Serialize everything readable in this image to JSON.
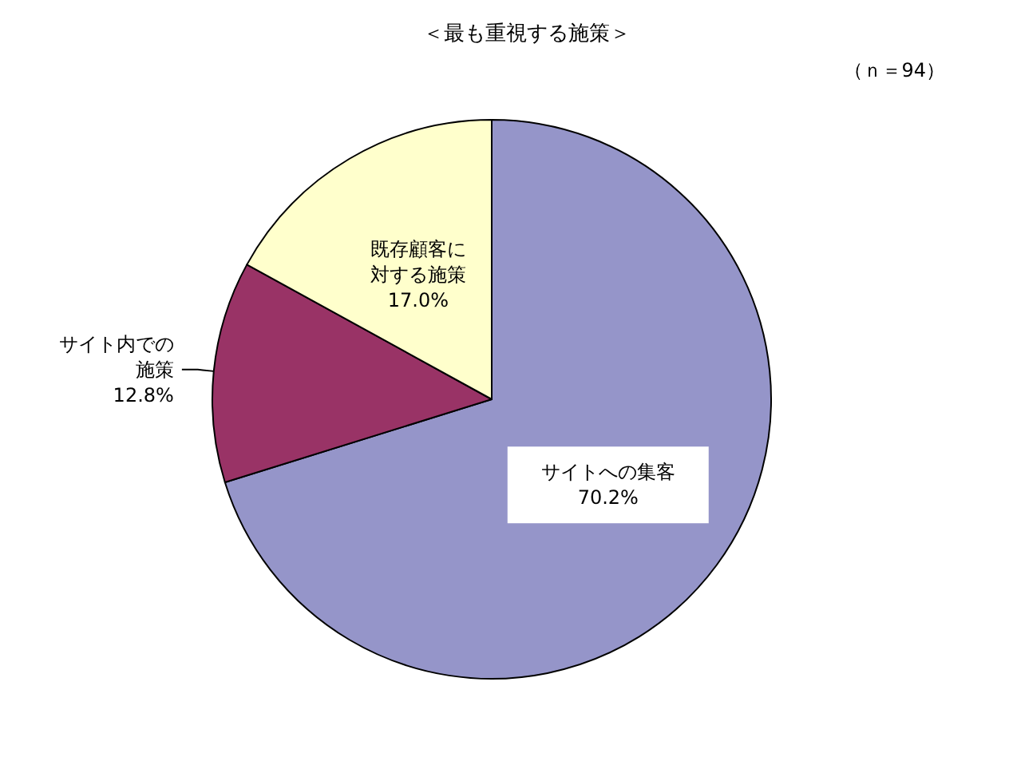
{
  "chart_data": {
    "type": "pie",
    "title": "＜最も重視する施策＞",
    "annotations": [
      "（ｎ＝94）"
    ],
    "categories": [
      "サイトへの集客",
      "サイト内での施策",
      "既存顧客に対する施策"
    ],
    "values": [
      70.2,
      12.8,
      17.0
    ],
    "value_labels": [
      "70.2%",
      "12.8%",
      "17.0%"
    ],
    "colors": [
      "#9595c9",
      "#993366",
      "#ffffcc"
    ],
    "legend": false
  }
}
